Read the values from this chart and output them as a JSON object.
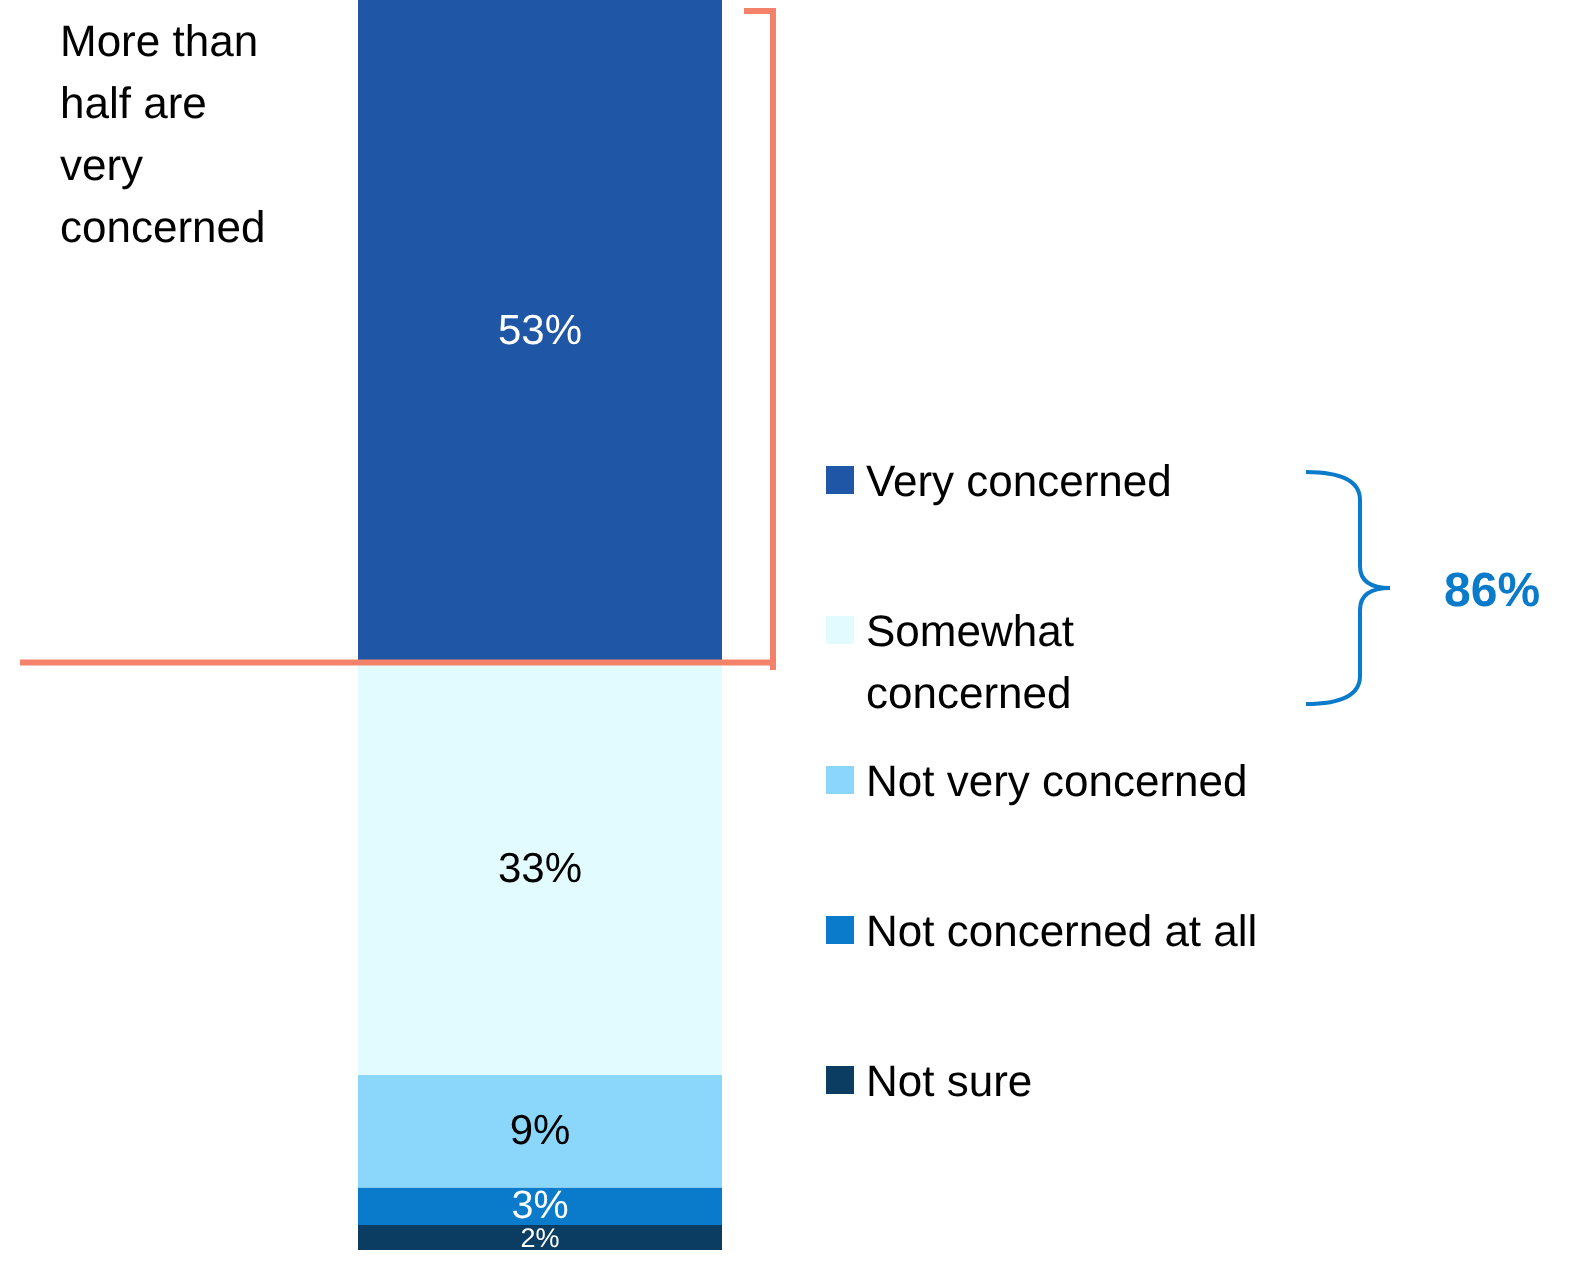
{
  "chart_data": {
    "type": "bar",
    "stacked": true,
    "categories": [
      null
    ],
    "ylim": [
      0,
      100
    ],
    "tick_labels": false,
    "legend": "right",
    "series": [
      {
        "name": "Not sure",
        "color": "#0b3c61",
        "values": [
          2
        ],
        "value_labels": [
          "2%"
        ]
      },
      {
        "name": "Not concerned at all",
        "color": "#0a7acb",
        "values": [
          3
        ],
        "value_labels": [
          "3%"
        ]
      },
      {
        "name": "Not very concerned",
        "color": "#8ad7fb",
        "values": [
          9
        ],
        "value_labels": [
          "9%"
        ]
      },
      {
        "name": "Somewhat concerned",
        "color": "#e2fbfe",
        "values": [
          33
        ],
        "value_labels": [
          "33%"
        ]
      },
      {
        "name": "Very concerned",
        "color": "#1f56a5",
        "values": [
          53
        ],
        "value_labels": [
          "53%"
        ]
      }
    ],
    "ref_lines": [
      {
        "axis": "y",
        "value": 47,
        "color": "#f4826a"
      }
    ],
    "annotations": [
      "More than half are very concerned",
      "86%"
    ]
  }
}
